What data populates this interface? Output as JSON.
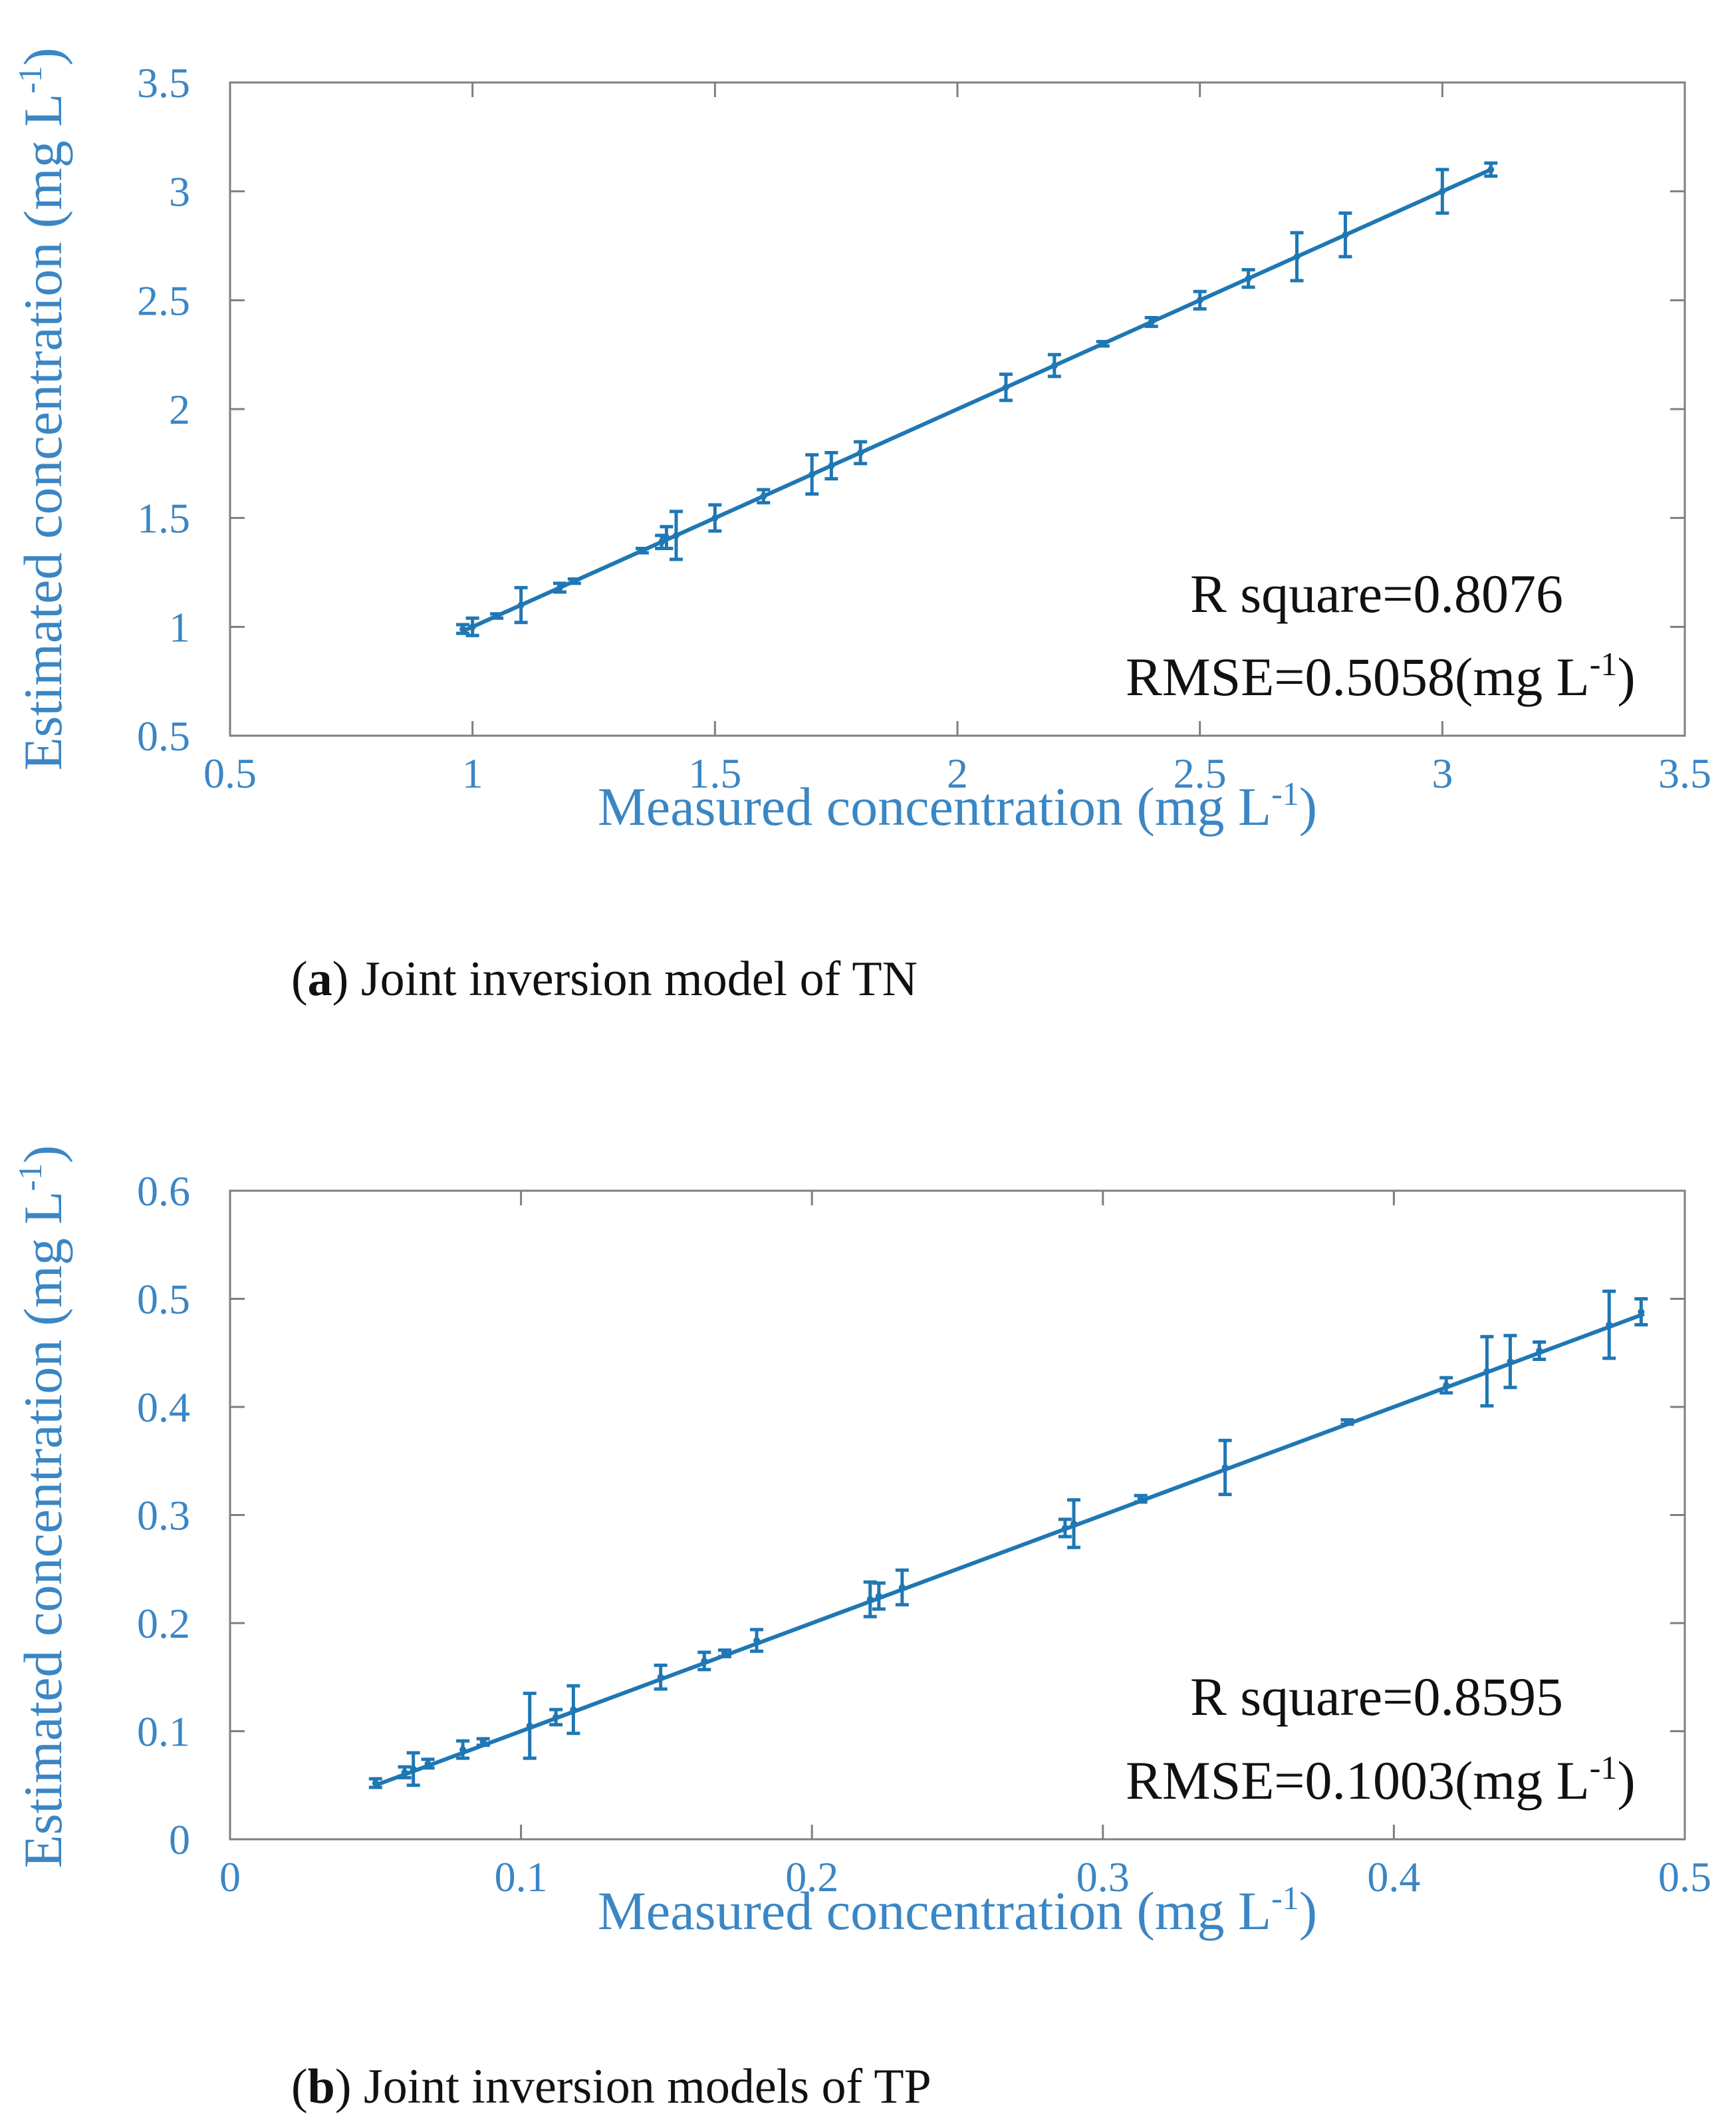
{
  "colors": {
    "series": "#1f77b4",
    "axis_text": "#3b86c4",
    "frame": "#7f7f7f"
  },
  "captions": {
    "a": {
      "letter": "a",
      "text": "Joint inversion model of TN"
    },
    "b": {
      "letter": "b",
      "text": "Joint inversion models of TP"
    }
  },
  "chart_data": [
    {
      "id": "a",
      "type": "line",
      "title": "",
      "xlabel": "Measured concentration (mg L",
      "ylabel": "Estimated concentration (mg L",
      "unit_exp": "-1",
      "unit_close": ")",
      "xlim": [
        0.5,
        3.5
      ],
      "ylim": [
        0.5,
        3.5
      ],
      "xticks": [
        0.5,
        1,
        1.5,
        2,
        2.5,
        3,
        3.5
      ],
      "yticks": [
        0.5,
        1,
        1.5,
        2,
        2.5,
        3,
        3.5
      ],
      "xtick_labels": [
        "0.5",
        "1",
        "1.5",
        "2",
        "2.5",
        "3",
        "3.5"
      ],
      "ytick_labels": [
        "0.5",
        "1",
        "1.5",
        "2",
        "2.5",
        "3",
        "3.5"
      ],
      "line": {
        "x": [
          0.98,
          3.1
        ],
        "y": [
          0.98,
          3.1
        ]
      },
      "points": [
        {
          "x": 0.98,
          "y": 0.99,
          "err": 0.02
        },
        {
          "x": 1.0,
          "y": 1.0,
          "err": 0.04
        },
        {
          "x": 1.05,
          "y": 1.05,
          "err": 0.01
        },
        {
          "x": 1.1,
          "y": 1.1,
          "err": 0.08
        },
        {
          "x": 1.18,
          "y": 1.18,
          "err": 0.02
        },
        {
          "x": 1.21,
          "y": 1.21,
          "err": 0.01
        },
        {
          "x": 1.35,
          "y": 1.35,
          "err": 0.01
        },
        {
          "x": 1.39,
          "y": 1.39,
          "err": 0.03
        },
        {
          "x": 1.4,
          "y": 1.41,
          "err": 0.05
        },
        {
          "x": 1.42,
          "y": 1.42,
          "err": 0.11
        },
        {
          "x": 1.5,
          "y": 1.5,
          "err": 0.06
        },
        {
          "x": 1.6,
          "y": 1.6,
          "err": 0.03
        },
        {
          "x": 1.7,
          "y": 1.7,
          "err": 0.09
        },
        {
          "x": 1.74,
          "y": 1.74,
          "err": 0.06
        },
        {
          "x": 1.8,
          "y": 1.8,
          "err": 0.05
        },
        {
          "x": 2.1,
          "y": 2.1,
          "err": 0.06
        },
        {
          "x": 2.2,
          "y": 2.2,
          "err": 0.05
        },
        {
          "x": 2.3,
          "y": 2.3,
          "err": 0.01
        },
        {
          "x": 2.4,
          "y": 2.4,
          "err": 0.02
        },
        {
          "x": 2.5,
          "y": 2.5,
          "err": 0.04
        },
        {
          "x": 2.6,
          "y": 2.6,
          "err": 0.04
        },
        {
          "x": 2.7,
          "y": 2.7,
          "err": 0.11
        },
        {
          "x": 2.8,
          "y": 2.8,
          "err": 0.1
        },
        {
          "x": 3.0,
          "y": 3.0,
          "err": 0.1
        },
        {
          "x": 3.1,
          "y": 3.1,
          "err": 0.03
        }
      ],
      "annotations": [
        "R square=0.8076",
        "RMSE=0.5058(mg L"
      ]
    },
    {
      "id": "b",
      "type": "line",
      "title": "",
      "xlabel": "Measured concentration (mg L",
      "ylabel": "Estimated concentration (mg L",
      "unit_exp": "-1",
      "unit_close": ")",
      "xlim": [
        0,
        0.5
      ],
      "ylim": [
        0,
        0.6
      ],
      "xticks": [
        0,
        0.1,
        0.2,
        0.3,
        0.4,
        0.5
      ],
      "yticks": [
        0,
        0.1,
        0.2,
        0.3,
        0.4,
        0.5,
        0.6
      ],
      "xtick_labels": [
        "0",
        "0.1",
        "0.2",
        "0.3",
        "0.4",
        "0.5"
      ],
      "ytick_labels": [
        "0",
        "0.1",
        "0.2",
        "0.3",
        "0.4",
        "0.5",
        "0.6"
      ],
      "line": {
        "x": [
          0.05,
          0.486
        ],
        "y": [
          0.05,
          0.486
        ]
      },
      "points": [
        {
          "x": 0.05,
          "y": 0.052,
          "err": 0.004
        },
        {
          "x": 0.06,
          "y": 0.062,
          "err": 0.005
        },
        {
          "x": 0.063,
          "y": 0.065,
          "err": 0.015
        },
        {
          "x": 0.068,
          "y": 0.07,
          "err": 0.004
        },
        {
          "x": 0.08,
          "y": 0.083,
          "err": 0.008
        },
        {
          "x": 0.087,
          "y": 0.09,
          "err": 0.003
        },
        {
          "x": 0.103,
          "y": 0.105,
          "err": 0.03
        },
        {
          "x": 0.112,
          "y": 0.113,
          "err": 0.007
        },
        {
          "x": 0.118,
          "y": 0.12,
          "err": 0.022
        },
        {
          "x": 0.148,
          "y": 0.15,
          "err": 0.011
        },
        {
          "x": 0.163,
          "y": 0.165,
          "err": 0.008
        },
        {
          "x": 0.17,
          "y": 0.172,
          "err": 0.003
        },
        {
          "x": 0.181,
          "y": 0.184,
          "err": 0.01
        },
        {
          "x": 0.22,
          "y": 0.222,
          "err": 0.016
        },
        {
          "x": 0.223,
          "y": 0.225,
          "err": 0.012
        },
        {
          "x": 0.231,
          "y": 0.233,
          "err": 0.016
        },
        {
          "x": 0.287,
          "y": 0.288,
          "err": 0.008
        },
        {
          "x": 0.29,
          "y": 0.292,
          "err": 0.022
        },
        {
          "x": 0.313,
          "y": 0.315,
          "err": 0.003
        },
        {
          "x": 0.342,
          "y": 0.344,
          "err": 0.025
        },
        {
          "x": 0.384,
          "y": 0.386,
          "err": 0.002
        },
        {
          "x": 0.418,
          "y": 0.42,
          "err": 0.007
        },
        {
          "x": 0.432,
          "y": 0.433,
          "err": 0.032
        },
        {
          "x": 0.44,
          "y": 0.442,
          "err": 0.024
        },
        {
          "x": 0.45,
          "y": 0.452,
          "err": 0.008
        },
        {
          "x": 0.474,
          "y": 0.476,
          "err": 0.031
        },
        {
          "x": 0.485,
          "y": 0.488,
          "err": 0.012
        }
      ],
      "annotations": [
        "R square=0.8595",
        "RMSE=0.1003(mg L"
      ]
    }
  ]
}
